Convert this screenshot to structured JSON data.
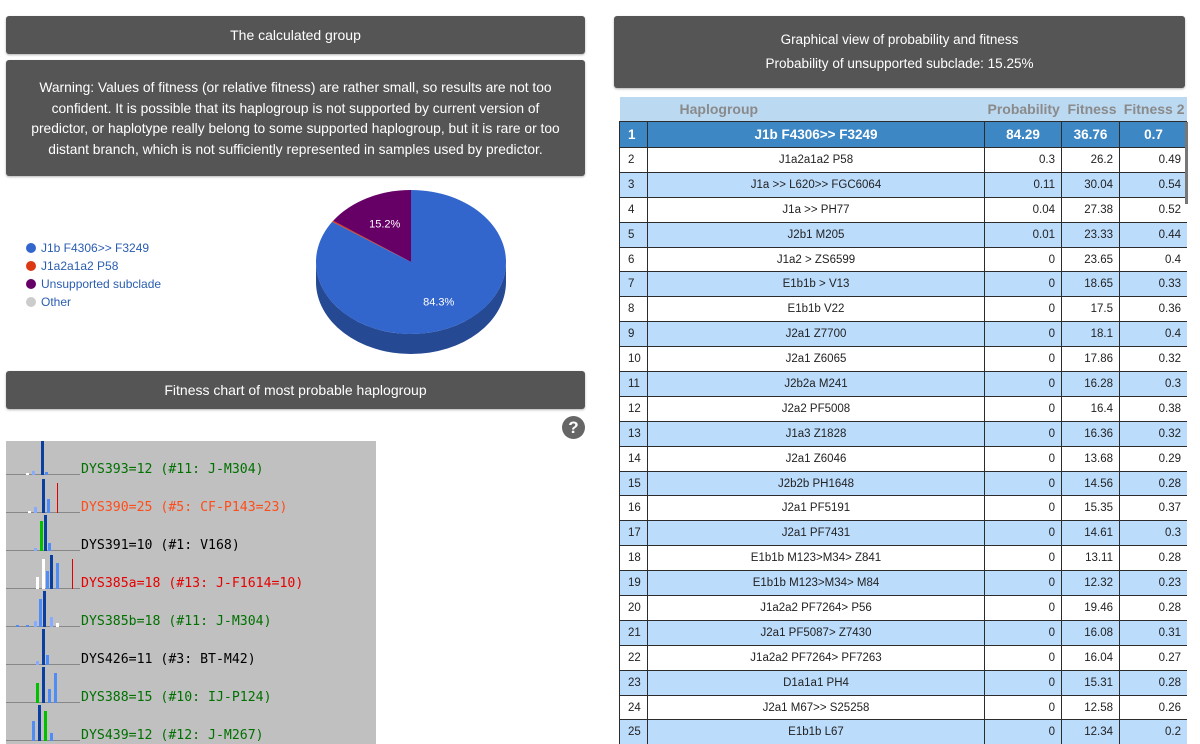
{
  "calculated_group": {
    "title": "The calculated group",
    "warning": "Warning: Values of fitness (or relative fitness) are rather small, so results are not too confident. It is possible that its haplogroup is not supported by current version of predictor, or haplotype really belong to some supported haplogroup, but it is rare or too distant branch, which is not sufficiently represented in samples used by predictor."
  },
  "graphical_view": {
    "title": "Graphical view of probability and fitness",
    "subtitle": "Probability of unsupported subclade: 15.25%"
  },
  "legend": [
    {
      "label": "J1b F4306>> F3249",
      "color": "#3366cc"
    },
    {
      "label": "J1a2a1a2 P58",
      "color": "#dc3912"
    },
    {
      "label": "Unsupported subclade",
      "color": "#660066"
    },
    {
      "label": "Other",
      "color": "#cccccc"
    }
  ],
  "chart_data": {
    "type": "pie",
    "slices": [
      {
        "name": "J1b F4306>> F3249",
        "value": 84.29,
        "label": "84.3%",
        "color": "#3366cc"
      },
      {
        "name": "J1a2a1a2 P58",
        "value": 0.3,
        "label": "",
        "color": "#dc3912"
      },
      {
        "name": "Unsupported subclade",
        "value": 15.25,
        "label": "15.2%",
        "color": "#660066"
      }
    ]
  },
  "fitness_chart": {
    "title": "Fitness chart of most probable haplogroup",
    "help_icon": "question-circle-icon",
    "rows": [
      {
        "label": "DYS393=12 (#11: J-M304)",
        "color": "#007000"
      },
      {
        "label": "DYS390=25 (#5: CF-P143=23)",
        "color": "#ff4d1a"
      },
      {
        "label": "DYS391=10 (#1: V168)",
        "color": "#000000"
      },
      {
        "label": "DYS385a=18 (#13: J-F1614=10)",
        "color": "#e60000"
      },
      {
        "label": "DYS385b=18 (#11: J-M304)",
        "color": "#007000"
      },
      {
        "label": "DYS426=11 (#3: BT-M42)",
        "color": "#000000"
      },
      {
        "label": "DYS388=15 (#10: IJ-P124)",
        "color": "#007000"
      },
      {
        "label": "DYS439=12 (#12: J-M267)",
        "color": "#007000"
      }
    ]
  },
  "table": {
    "headers": [
      "",
      "Haplogroup",
      "Probability",
      "Fitness",
      "Fitness 2"
    ],
    "rows": [
      [
        "1",
        "J1b F4306>> F3249",
        "84.29",
        "36.76",
        "0.7"
      ],
      [
        "2",
        "J1a2a1a2 P58",
        "0.3",
        "26.2",
        "0.49"
      ],
      [
        "3",
        "J1a >> L620>> FGC6064",
        "0.11",
        "30.04",
        "0.54"
      ],
      [
        "4",
        "J1a >> PH77",
        "0.04",
        "27.38",
        "0.52"
      ],
      [
        "5",
        "J2b1 M205",
        "0.01",
        "23.33",
        "0.44"
      ],
      [
        "6",
        "J1a2 > ZS6599",
        "0",
        "23.65",
        "0.4"
      ],
      [
        "7",
        "E1b1b > V13",
        "0",
        "18.65",
        "0.33"
      ],
      [
        "8",
        "E1b1b V22",
        "0",
        "17.5",
        "0.36"
      ],
      [
        "9",
        "J2a1 Z7700",
        "0",
        "18.1",
        "0.4"
      ],
      [
        "10",
        "J2a1 Z6065",
        "0",
        "17.86",
        "0.32"
      ],
      [
        "11",
        "J2b2a M241",
        "0",
        "16.28",
        "0.3"
      ],
      [
        "12",
        "J2a2 PF5008",
        "0",
        "16.4",
        "0.38"
      ],
      [
        "13",
        "J1a3 Z1828",
        "0",
        "16.36",
        "0.32"
      ],
      [
        "14",
        "J2a1 Z6046",
        "0",
        "13.68",
        "0.29"
      ],
      [
        "15",
        "J2b2b PH1648",
        "0",
        "14.56",
        "0.28"
      ],
      [
        "16",
        "J2a1 PF5191",
        "0",
        "15.35",
        "0.37"
      ],
      [
        "17",
        "J2a1 PF7431",
        "0",
        "14.61",
        "0.3"
      ],
      [
        "18",
        "E1b1b M123>M34> Z841",
        "0",
        "13.11",
        "0.28"
      ],
      [
        "19",
        "E1b1b M123>M34> M84",
        "0",
        "12.32",
        "0.23"
      ],
      [
        "20",
        "J1a2a2 PF7264> P56",
        "0",
        "19.46",
        "0.28"
      ],
      [
        "21",
        "J2a1 PF5087> Z7430",
        "0",
        "16.08",
        "0.31"
      ],
      [
        "22",
        "J1a2a2 PF7264> PF7263",
        "0",
        "16.04",
        "0.27"
      ],
      [
        "23",
        "D1a1a1 PH4",
        "0",
        "15.31",
        "0.28"
      ],
      [
        "24",
        "J2a1 M67>> S25258",
        "0",
        "12.58",
        "0.26"
      ],
      [
        "25",
        "E1b1b L67",
        "0",
        "12.34",
        "0.2"
      ]
    ]
  }
}
